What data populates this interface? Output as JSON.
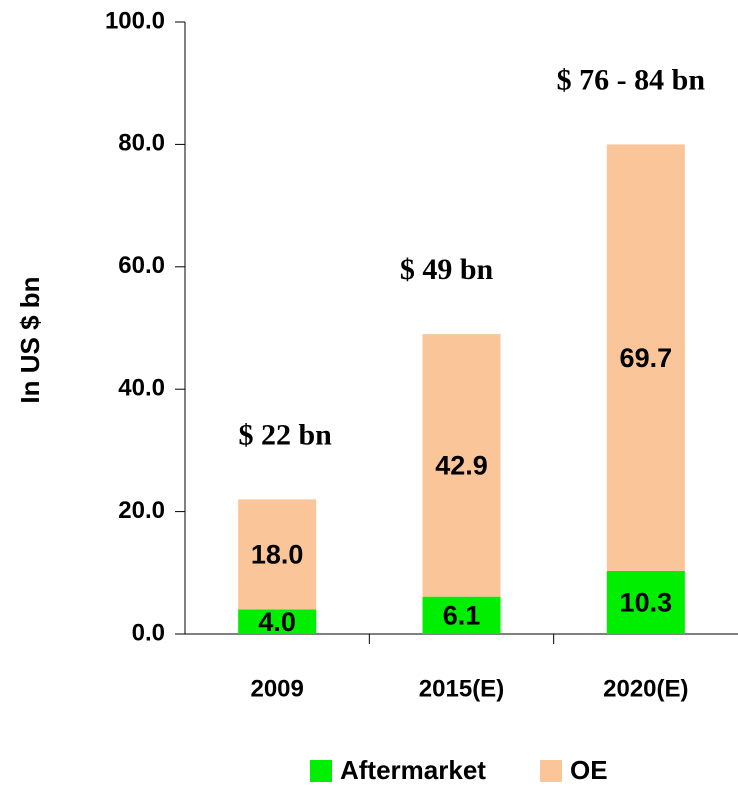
{
  "chart_data": {
    "type": "stacked_bar",
    "y_label": "In US $ bn",
    "categories": [
      "2009",
      "2015(E)",
      "2020(E)"
    ],
    "series": [
      {
        "name": "Aftermarket",
        "color": "#00ee00",
        "values": [
          4.0,
          6.1,
          10.3
        ],
        "value_labels": [
          "4.0",
          "6.1",
          "10.3"
        ]
      },
      {
        "name": "OE",
        "color": "#fac598",
        "values": [
          18.0,
          42.9,
          69.7
        ],
        "value_labels": [
          "18.0",
          "42.9",
          "69.7"
        ]
      }
    ],
    "annotations": [
      "$ 22 bn",
      "$ 49 bn",
      "$ 76 - 84 bn"
    ],
    "ylim": [
      0,
      100
    ],
    "yticks": [
      {
        "value": 0,
        "label": "0.0"
      },
      {
        "value": 20,
        "label": "20.0"
      },
      {
        "value": 40,
        "label": "40.0"
      },
      {
        "value": 60,
        "label": "60.0"
      },
      {
        "value": 80,
        "label": "80.0"
      },
      {
        "value": 100,
        "label": "100.0"
      }
    ],
    "legend": "bottom"
  }
}
